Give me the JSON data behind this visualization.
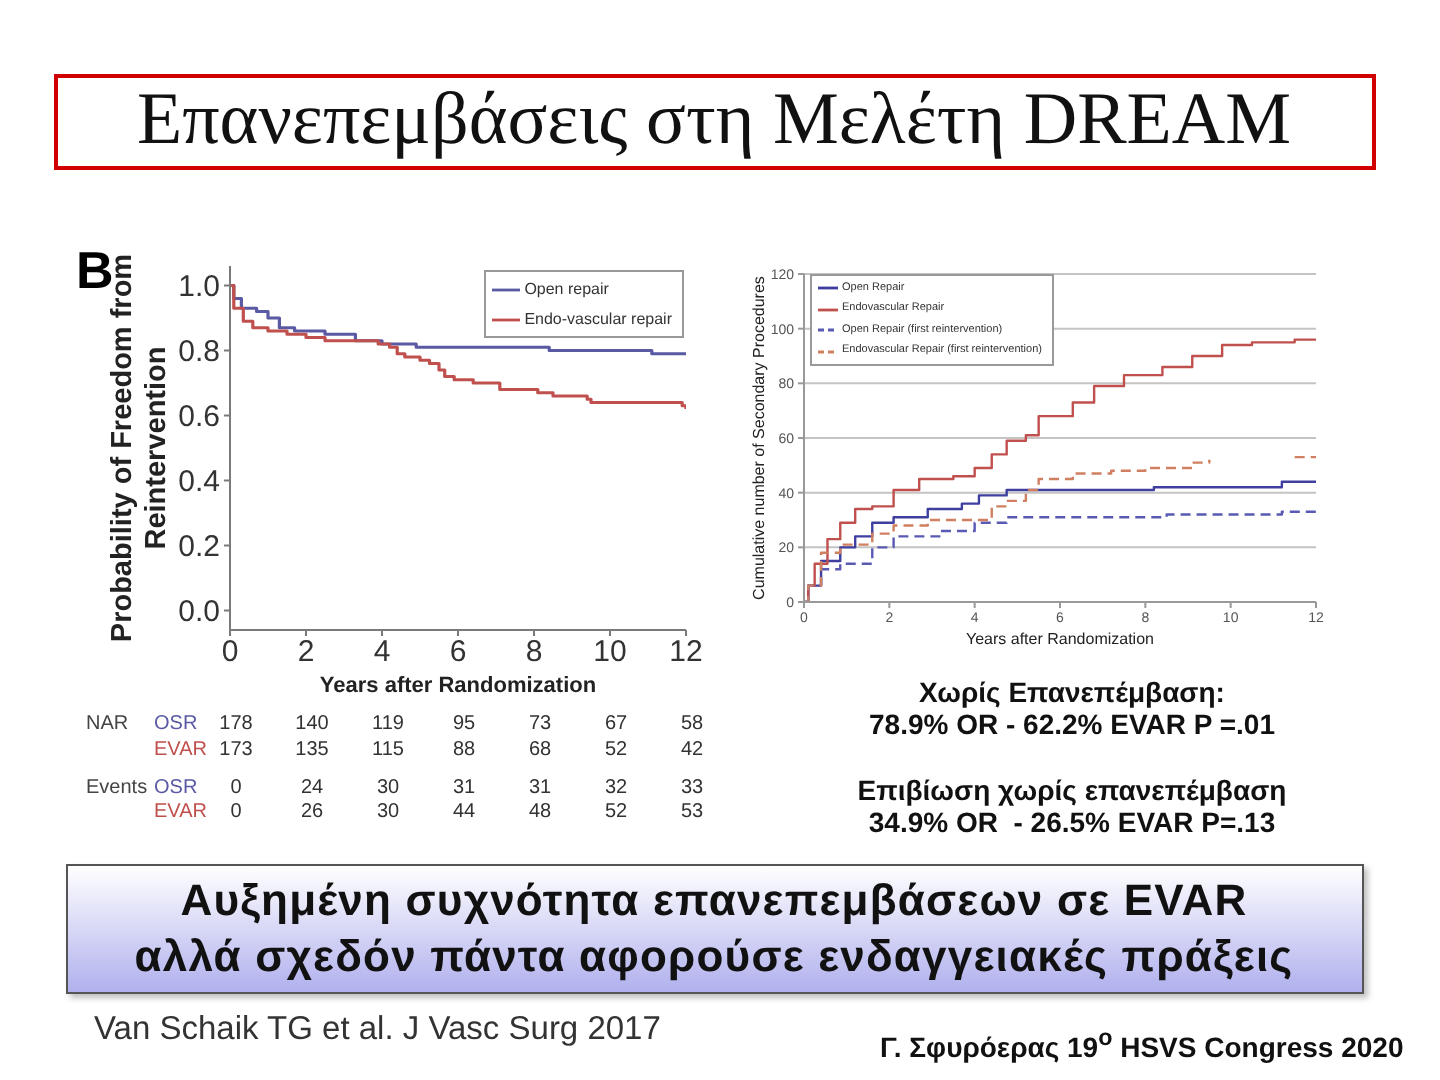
{
  "chart_data": [
    {
      "type": "step",
      "title": "Επανεπεμβάσεις στη Μελέτη DREAM",
      "xlabel": "Years after Randomization",
      "ylabel": "Probability of Freedom from Reintervention",
      "xlim": [
        0,
        12
      ],
      "xticks": [
        0,
        2,
        4,
        6,
        8,
        10,
        12
      ],
      "ylim": [
        -0.06,
        1.06
      ],
      "yticks": [
        {
          "value": 0,
          "label": "0.0"
        },
        0.2,
        0.4,
        0.6,
        0.8,
        {
          "value": 1,
          "label": "1.0"
        }
      ],
      "legend": "top right",
      "series": [
        {
          "name": "Open repair",
          "color": "#5a5aa4",
          "x": [
            0,
            0.1,
            0.3,
            0.7,
            1.0,
            1.3,
            1.7,
            2.5,
            3.3,
            4.0,
            4.9,
            8.4,
            11.1,
            12
          ],
          "values": [
            1,
            0.96,
            0.93,
            0.92,
            0.9,
            0.87,
            0.86,
            0.85,
            0.83,
            0.82,
            0.81,
            0.8,
            0.79,
            0.79
          ]
        },
        {
          "name": "Endo-vascular repair",
          "color": "#c0504d",
          "x": [
            0,
            0.1,
            0.35,
            0.6,
            1.0,
            1.5,
            2.0,
            2.5,
            3.9,
            4.2,
            4.4,
            4.6,
            5.0,
            5.25,
            5.5,
            5.65,
            5.9,
            6.4,
            7.1,
            8.1,
            8.5,
            9.4,
            9.5,
            11.9,
            12
          ],
          "values": [
            1,
            0.93,
            0.89,
            0.87,
            0.86,
            0.85,
            0.84,
            0.83,
            0.82,
            0.81,
            0.79,
            0.78,
            0.77,
            0.76,
            0.74,
            0.72,
            0.71,
            0.7,
            0.68,
            0.67,
            0.66,
            0.65,
            0.64,
            0.63,
            0.62
          ]
        }
      ],
      "annotations": [
        "B",
        "NAR",
        "OSR 178 140 119 95 73 67 58",
        "EVAR 173 135 115 88 68 52 42",
        "Events",
        "OSR 0 24 30 31 31 32 33",
        "EVAR 0 26 30 44 48 52 53"
      ]
    },
    {
      "type": "step",
      "xlabel": "Years after Randomization",
      "ylabel": "Cumulative number of Secondary Procedures",
      "xlim": [
        0,
        12
      ],
      "xticks": [
        0,
        2,
        4,
        6,
        8,
        10,
        12
      ],
      "ylim": [
        0,
        120
      ],
      "yticks": [
        0,
        20,
        40,
        60,
        80,
        100,
        120
      ],
      "grid": "y",
      "legend": "top left",
      "series": [
        {
          "name": "Open Repair",
          "color": "#3f3f9f",
          "x": [
            0,
            0.1,
            0.4,
            0.85,
            1.2,
            1.6,
            2.1,
            2.9,
            3.7,
            4.1,
            4.75,
            8.2,
            11.2,
            12
          ],
          "values": [
            0,
            6,
            15,
            20,
            24,
            29,
            31,
            34,
            36,
            39,
            41,
            42,
            44,
            44
          ]
        },
        {
          "name": "Endovascular Repair",
          "color": "#c0504d",
          "x": [
            0,
            0.1,
            0.25,
            0.55,
            0.85,
            1.2,
            1.6,
            2.1,
            2.7,
            3.5,
            4.0,
            4.4,
            4.75,
            5.2,
            5.5,
            6.3,
            6.8,
            7.5,
            8.4,
            9.1,
            9.8,
            10.5,
            11.5,
            12
          ],
          "values": [
            0,
            6,
            14,
            23,
            29,
            34,
            35,
            41,
            45,
            46,
            49,
            54,
            59,
            61,
            68,
            73,
            79,
            83,
            86,
            90,
            94,
            95,
            96,
            96
          ]
        },
        {
          "name": "Open Repair (first reintervention)",
          "color": "#5a5ab4",
          "line_style": "dashed",
          "x": [
            0,
            0.1,
            0.4,
            0.85,
            1.6,
            2.1,
            3.2,
            4.0,
            4.75,
            8.5,
            11.2,
            12
          ],
          "values": [
            0,
            6,
            12,
            14,
            20,
            24,
            26,
            29,
            31,
            32,
            33,
            33
          ]
        },
        {
          "name": "Endovascular Repair (first reintervention)",
          "color": "#d08060",
          "line_style": "dashed",
          "x": [
            0,
            0.1,
            0.4,
            0.85,
            1.6,
            2.1,
            2.9,
            4.3,
            4.4,
            4.75,
            5.2,
            5.5,
            6.3,
            7.2,
            8.0,
            9.1,
            9.5,
            10.5,
            11.5,
            12
          ],
          "values": [
            0,
            6,
            18,
            21,
            25,
            28,
            30,
            30,
            35,
            37,
            41,
            45,
            47,
            48,
            49,
            51,
            52,
            null,
            53,
            53
          ]
        }
      ],
      "annotations": [
        "Χωρίς Επανεπέμβαση:",
        "78.9% OR - 62.2% EVAR P =.01",
        "Επιβίωση χωρίς επανεπέμβαση",
        "34.9% OR  - 26.5% EVAR P=.13"
      ]
    },
    {
      "type": "other",
      "annotations": [
        "Αυξημένη συχνότητα επανεπεμβάσεων σε EVAR",
        "αλλά σχεδόν πάντα αφορούσε ενδαγγειακές πράξεις",
        "Van Schaik TG et al. J Vasc Surg 2017",
        "Γ. Σφυρόερας 19$^{ο}$ HSVS Congress 2020"
      ]
    }
  ]
}
